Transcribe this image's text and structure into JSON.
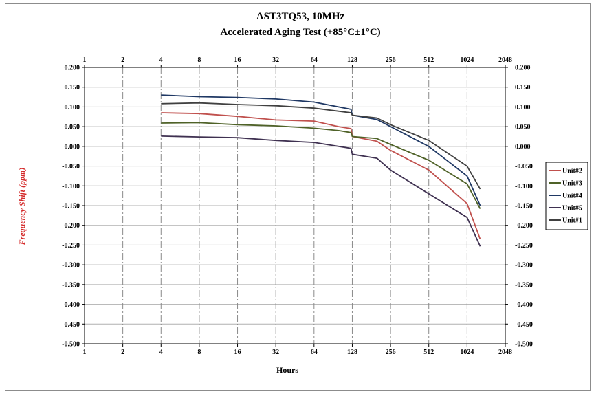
{
  "chart_data": {
    "type": "line",
    "title": "AST3TQ53, 10MHz",
    "subtitle": "Accelerated Aging Test (+85°C±1°C)",
    "xlabel": "Hours",
    "ylabel": "Frequency Shift (ppm)",
    "x_scale": "log2",
    "xlim": [
      1,
      2048
    ],
    "ylim": [
      -0.5,
      0.2
    ],
    "x_ticks": [
      1,
      2,
      4,
      8,
      16,
      32,
      64,
      128,
      256,
      512,
      1024,
      2048
    ],
    "x_tick_labels": [
      "1",
      "2",
      "4",
      "8",
      "16",
      "32",
      "64",
      "128",
      "256",
      "512",
      "1024",
      "2048"
    ],
    "y_ticks": [
      0.2,
      0.15,
      0.1,
      0.05,
      0.0,
      -0.05,
      -0.1,
      -0.15,
      -0.2,
      -0.25,
      -0.3,
      -0.35,
      -0.4,
      -0.45,
      -0.5
    ],
    "y_tick_labels": [
      "0.200",
      "0.150",
      "0.100",
      "0.050",
      "0.000",
      "-0.050",
      "-0.100",
      "-0.150",
      "-0.200",
      "-0.250",
      "-0.300",
      "-0.350",
      "-0.400",
      "-0.450",
      "-0.500"
    ],
    "grid": "vertical dash-dot lines at x ticks, horizontal solid lines at y ticks",
    "legend_placement": "right",
    "series": [
      {
        "name": "Unit#2",
        "color": "#c0504d",
        "x": [
          4,
          8,
          16,
          32,
          64,
          100,
          125,
          128,
          200,
          256,
          512,
          1024,
          1300
        ],
        "y": [
          0.085,
          0.083,
          0.076,
          0.067,
          0.064,
          0.05,
          0.045,
          0.025,
          0.013,
          -0.01,
          -0.06,
          -0.145,
          -0.235
        ]
      },
      {
        "name": "Unit#3",
        "color": "#4f6228",
        "x": [
          4,
          8,
          16,
          32,
          64,
          100,
          125,
          128,
          200,
          256,
          512,
          1024,
          1300
        ],
        "y": [
          0.059,
          0.06,
          0.055,
          0.052,
          0.046,
          0.04,
          0.035,
          0.025,
          0.02,
          0.005,
          -0.035,
          -0.095,
          -0.158
        ]
      },
      {
        "name": "Unit#4",
        "color": "#1f3864",
        "x": [
          4,
          8,
          16,
          32,
          64,
          125,
          128,
          200,
          256,
          512,
          1024,
          1300
        ],
        "y": [
          0.13,
          0.126,
          0.124,
          0.12,
          0.112,
          0.094,
          0.079,
          0.068,
          0.05,
          0.0,
          -0.075,
          -0.15
        ]
      },
      {
        "name": "Unit#5",
        "color": "#3f3151",
        "x": [
          4,
          8,
          16,
          32,
          64,
          125,
          128,
          200,
          256,
          512,
          1024,
          1300
        ],
        "y": [
          0.026,
          0.024,
          0.022,
          0.015,
          0.01,
          -0.005,
          -0.02,
          -0.03,
          -0.06,
          -0.12,
          -0.18,
          -0.253
        ]
      },
      {
        "name": "Unit#1",
        "color": "#404040",
        "x": [
          4,
          8,
          16,
          32,
          64,
          125,
          128,
          200,
          256,
          512,
          1024,
          1300
        ],
        "y": [
          0.108,
          0.11,
          0.106,
          0.103,
          0.097,
          0.085,
          0.079,
          0.072,
          0.055,
          0.015,
          -0.05,
          -0.108
        ]
      }
    ]
  }
}
